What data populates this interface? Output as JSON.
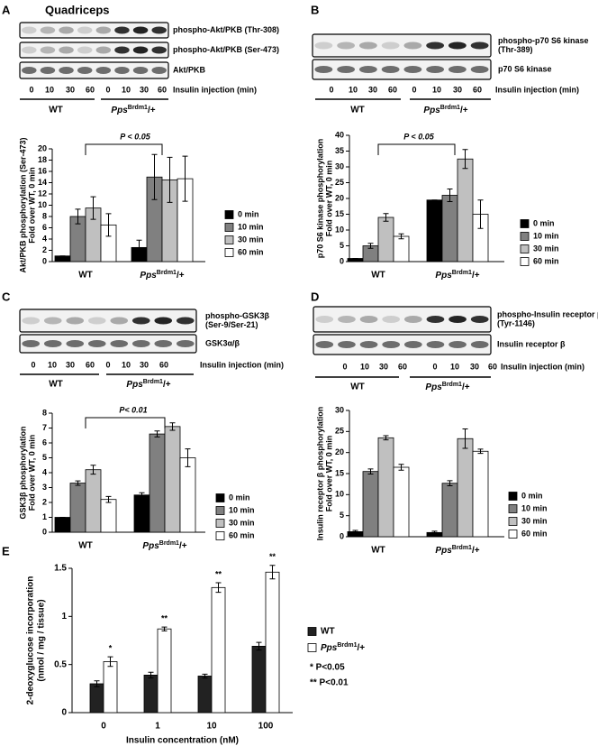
{
  "panel_letters": [
    "A",
    "B",
    "C",
    "D",
    "E"
  ],
  "tissue": "Quadriceps",
  "blots": [
    {
      "labels": [
        [
          "phospho-Akt/PKB (Thr-308)"
        ],
        [
          "phospho-Akt/PKB (Ser-473)"
        ],
        [
          "Akt/PKB"
        ]
      ],
      "lanes": [
        "0",
        "10",
        "30",
        "60",
        "0",
        "10",
        "30",
        "60"
      ],
      "caption": "Insulin injection (min)"
    },
    {
      "labels": [
        [
          "phospho-p70 S6 kinase",
          "(Thr-389)"
        ],
        [
          "p70 S6 kinase"
        ]
      ],
      "lanes": [
        "0",
        "10",
        "30",
        "60",
        "0",
        "10",
        "30",
        "60"
      ],
      "caption": "Insulin injection (min)"
    },
    {
      "labels": [
        [
          "phospho-GSK3β",
          "(Ser-9/Ser-21)"
        ],
        [
          "GSK3α/β"
        ]
      ],
      "lanes": [
        "0",
        "10",
        "30",
        "60",
        "0",
        "10",
        "30",
        "60"
      ],
      "caption": "Insulin injection (min)"
    },
    {
      "labels": [
        [
          "phospho-Insulin receptor β",
          "(Tyr-1146)"
        ],
        [
          "Insulin receptor β"
        ]
      ],
      "lanes": [
        "0",
        "10",
        "30",
        "60",
        "0",
        "10",
        "30",
        "60"
      ],
      "caption": "Insulin injection (min)"
    }
  ],
  "chart_data": [
    {
      "type": "bar",
      "ylabel": [
        "Akt/PKB phosphorylation (Ser-473)",
        "Fold over WT, 0 min"
      ],
      "categories": [
        "WT",
        [
          "Pps",
          "Brdm1",
          "/+"
        ]
      ],
      "ylim": [
        0,
        20
      ],
      "yticks": [
        0,
        2,
        4,
        6,
        8,
        10,
        12,
        14,
        16,
        18,
        20
      ],
      "annotation": "P < 0.05",
      "series": [
        {
          "name": "0 min",
          "color": "#000000",
          "values": [
            1,
            2.5
          ],
          "errors": [
            0,
            1.3
          ]
        },
        {
          "name": "10 min",
          "color": "#808080",
          "values": [
            8,
            15
          ],
          "errors": [
            1.3,
            4
          ]
        },
        {
          "name": "30 min",
          "color": "#c0c0c0",
          "values": [
            9.5,
            14.5
          ],
          "errors": [
            2,
            4
          ]
        },
        {
          "name": "60 min",
          "color": "#ffffff",
          "values": [
            6.5,
            14.7
          ],
          "errors": [
            2,
            4
          ]
        }
      ]
    },
    {
      "type": "bar",
      "ylabel": [
        "p70 S6 kinase phosphorylation",
        "Fold over WT, 0 min"
      ],
      "categories": [
        "WT",
        [
          "Pps",
          "Brdm1",
          "/+"
        ]
      ],
      "ylim": [
        0,
        40
      ],
      "yticks": [
        0,
        5,
        10,
        15,
        20,
        25,
        30,
        35,
        40
      ],
      "annotation": "P < 0.05",
      "series": [
        {
          "name": "0 min",
          "color": "#000000",
          "values": [
            1,
            19.5
          ],
          "errors": [
            0,
            0
          ]
        },
        {
          "name": "10 min",
          "color": "#808080",
          "values": [
            5,
            21
          ],
          "errors": [
            0.8,
            2
          ]
        },
        {
          "name": "30 min",
          "color": "#c0c0c0",
          "values": [
            14,
            32.5
          ],
          "errors": [
            1.2,
            3
          ]
        },
        {
          "name": "60 min",
          "color": "#ffffff",
          "values": [
            8,
            15
          ],
          "errors": [
            0.8,
            4.5
          ]
        }
      ]
    },
    {
      "type": "bar",
      "ylabel": [
        "GSK3β phosphorylation",
        "Fold over WT, 0 min"
      ],
      "categories": [
        "WT",
        [
          "Pps",
          "Brdm1",
          "/+"
        ]
      ],
      "ylim": [
        0,
        8
      ],
      "yticks": [
        0,
        1,
        2,
        3,
        4,
        5,
        6,
        7,
        8
      ],
      "annotation": "P< 0.01",
      "series": [
        {
          "name": "0 min",
          "color": "#000000",
          "values": [
            1,
            2.5
          ],
          "errors": [
            0,
            0.15
          ]
        },
        {
          "name": "10 min",
          "color": "#808080",
          "values": [
            3.3,
            6.6
          ],
          "errors": [
            0.15,
            0.2
          ]
        },
        {
          "name": "30 min",
          "color": "#c0c0c0",
          "values": [
            4.2,
            7.1
          ],
          "errors": [
            0.3,
            0.25
          ]
        },
        {
          "name": "60 min",
          "color": "#ffffff",
          "values": [
            2.2,
            5
          ],
          "errors": [
            0.2,
            0.6
          ]
        }
      ]
    },
    {
      "type": "bar",
      "ylabel": [
        "Insulin receptor β phosphorylation",
        "Fold over WT, 0 min"
      ],
      "categories": [
        "WT",
        [
          "Pps",
          "Brdm1",
          "/+"
        ]
      ],
      "ylim": [
        0,
        30
      ],
      "yticks": [
        0,
        5,
        10,
        15,
        20,
        25,
        30
      ],
      "series": [
        {
          "name": "0 min",
          "color": "#000000",
          "values": [
            1.2,
            1
          ],
          "errors": [
            0.3,
            0.3
          ]
        },
        {
          "name": "10 min",
          "color": "#808080",
          "values": [
            15.5,
            12.7
          ],
          "errors": [
            0.6,
            0.6
          ]
        },
        {
          "name": "30 min",
          "color": "#c0c0c0",
          "values": [
            23.5,
            23.3
          ],
          "errors": [
            0.5,
            2.3
          ]
        },
        {
          "name": "60 min",
          "color": "#ffffff",
          "values": [
            16.5,
            20.3
          ],
          "errors": [
            0.7,
            0.5
          ]
        }
      ]
    },
    {
      "type": "bar",
      "ylabel": [
        "2-deoxyglucose incorporation",
        "(nmol / mg / tissue)"
      ],
      "xlabel": "Insulin concentration (nM)",
      "categories": [
        "0",
        "1",
        "10",
        "100"
      ],
      "ylim": [
        0,
        1.5
      ],
      "yticks": [
        0,
        0.5,
        1,
        1.5
      ],
      "stars": [
        "*",
        "**",
        "**",
        "**"
      ],
      "notes": [
        "* P<0.05",
        "** P<0.01"
      ],
      "series": [
        {
          "name": "WT",
          "color": "#222222",
          "values": [
            0.3,
            0.39,
            0.38,
            0.69
          ],
          "errors": [
            0.03,
            0.03,
            0.02,
            0.04
          ]
        },
        {
          "name": [
            "Pps",
            "Brdm1",
            "/+"
          ],
          "color": "#ffffff",
          "values": [
            0.53,
            0.87,
            1.3,
            1.46
          ],
          "errors": [
            0.05,
            0.02,
            0.05,
            0.07
          ]
        }
      ]
    }
  ]
}
